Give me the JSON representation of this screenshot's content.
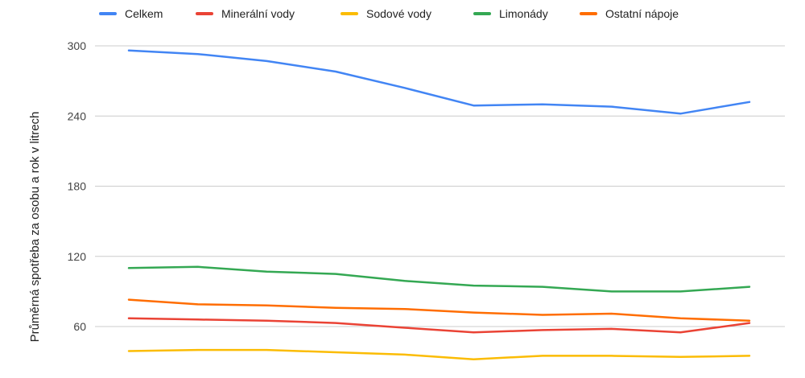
{
  "chart_data": {
    "type": "line",
    "title": "",
    "xlabel": "",
    "ylabel": "Průměrná spotřeba za osobu a rok v litrech",
    "ylim": [
      30,
      300
    ],
    "yticks": [
      60,
      120,
      180,
      240,
      300
    ],
    "grid": true,
    "legend_position": "top",
    "x": [
      1,
      2,
      3,
      4,
      5,
      6,
      7,
      8,
      9,
      10
    ],
    "series": [
      {
        "name": "Celkem",
        "color": "#4285f4",
        "values": [
          296,
          293,
          287,
          278,
          264,
          249,
          250,
          248,
          242,
          252
        ]
      },
      {
        "name": "Minerální vody",
        "color": "#ea4335",
        "values": [
          67,
          66,
          65,
          63,
          59,
          55,
          57,
          58,
          55,
          63
        ]
      },
      {
        "name": "Sodové vody",
        "color": "#fbbc04",
        "values": [
          39,
          40,
          40,
          38,
          36,
          32,
          35,
          35,
          34,
          35
        ]
      },
      {
        "name": "Limonády",
        "color": "#34a853",
        "values": [
          110,
          111,
          107,
          105,
          99,
          95,
          94,
          90,
          90,
          94
        ]
      },
      {
        "name": "Ostatní nápoje",
        "color": "#ff6d01",
        "values": [
          83,
          79,
          78,
          76,
          75,
          72,
          70,
          71,
          67,
          65
        ]
      }
    ]
  }
}
